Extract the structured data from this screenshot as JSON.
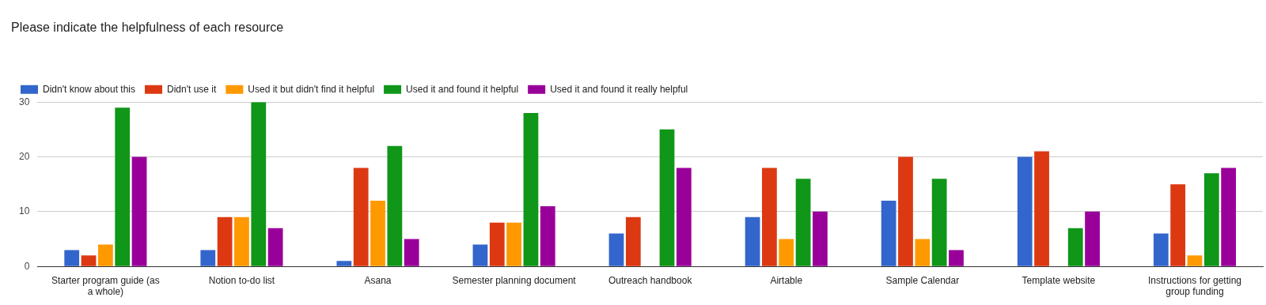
{
  "chart_data": {
    "type": "bar",
    "title": "Please indicate the helpfulness of each resource",
    "categories": [
      "Starter program guide (as a whole)",
      "Notion to-do list",
      "Asana",
      "Semester planning document",
      "Outreach handbook",
      "Airtable",
      "Sample Calendar",
      "Template website",
      "Instructions for getting group funding"
    ],
    "series": [
      {
        "name": "Didn't know about this",
        "color": "#3366cc",
        "values": [
          3,
          3,
          1,
          4,
          6,
          9,
          12,
          20,
          6
        ]
      },
      {
        "name": "Didn't use it",
        "color": "#dc3912",
        "values": [
          2,
          9,
          18,
          8,
          9,
          18,
          20,
          21,
          15
        ]
      },
      {
        "name": "Used it but didn't find it helpful",
        "color": "#ff9900",
        "values": [
          4,
          9,
          12,
          8,
          0,
          5,
          5,
          0,
          2
        ]
      },
      {
        "name": "Used it and found it helpful",
        "color": "#109618",
        "values": [
          29,
          30,
          22,
          28,
          25,
          16,
          16,
          7,
          17
        ]
      },
      {
        "name": "Used it and found it really helpful",
        "color": "#990099",
        "values": [
          20,
          7,
          5,
          11,
          18,
          10,
          3,
          10,
          18
        ]
      }
    ],
    "ylim": [
      0,
      30
    ],
    "yticks": [
      0,
      10,
      20,
      30
    ],
    "grid": true,
    "legend": "top-left"
  }
}
